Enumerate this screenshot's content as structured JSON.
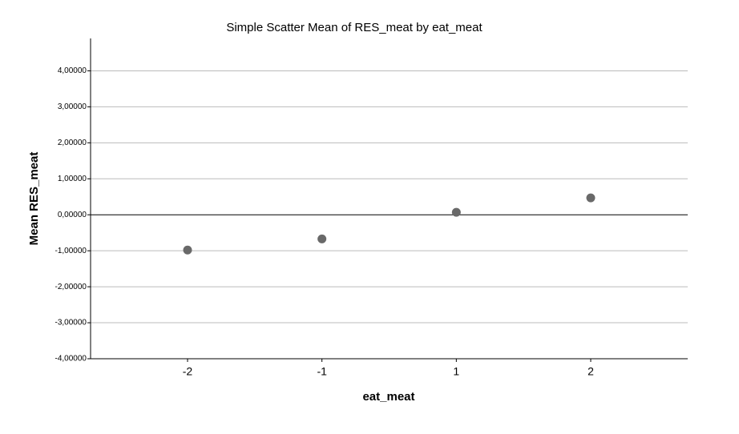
{
  "chart_data": {
    "type": "scatter",
    "title": "Simple Scatter Mean of RES_meat by eat_meat",
    "x_label": "eat_meat",
    "y_label": "Mean RES_meat",
    "categories": [
      "-2",
      "-1",
      "1",
      "2"
    ],
    "values": [
      -0.98,
      -0.67,
      0.07,
      0.47
    ],
    "color": "#696969",
    "ylim": [
      -4,
      4.9
    ],
    "yticks": [
      {
        "value": -4,
        "label": "-4,00000"
      },
      {
        "value": -3,
        "label": "-3,00000"
      },
      {
        "value": -2,
        "label": "-2,00000"
      },
      {
        "value": -1,
        "label": "-1,00000"
      },
      {
        "value": 0,
        "label": "0,00000"
      },
      {
        "value": 1,
        "label": "1,00000"
      },
      {
        "value": 2,
        "label": "2,00000"
      },
      {
        "value": 3,
        "label": "3,00000"
      },
      {
        "value": 4,
        "label": "4,00000"
      }
    ],
    "grid": true
  }
}
